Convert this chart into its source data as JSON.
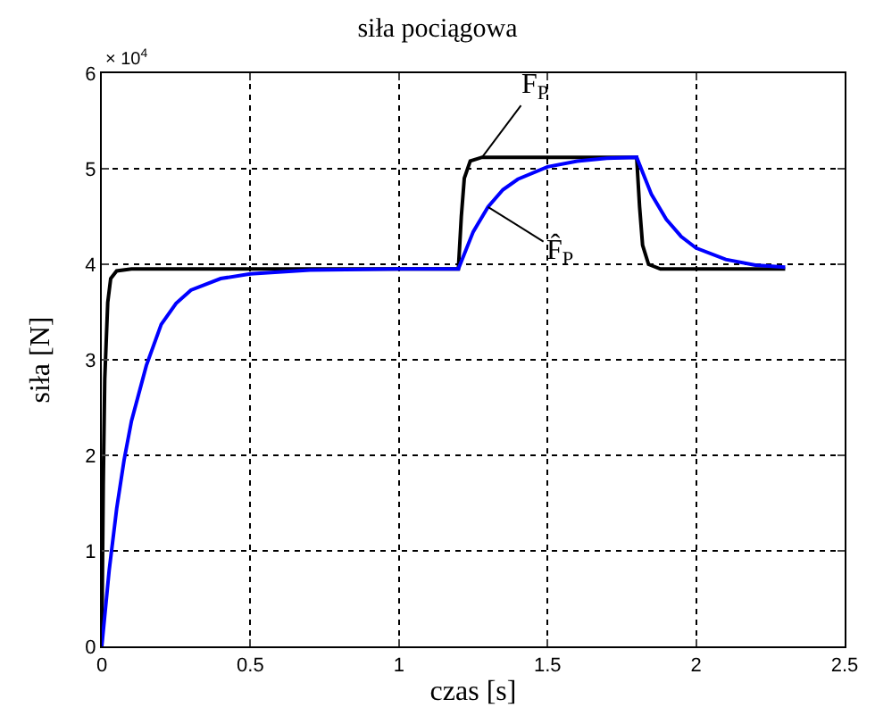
{
  "chart_data": {
    "type": "line",
    "title": "siła pociągowa",
    "xlabel": "czas [s]",
    "ylabel": "siła [N]",
    "annotations": [
      "× 10$^{4}$"
    ],
    "xlim": [
      0,
      2.5
    ],
    "xticks": [
      0,
      0.5,
      1,
      1.5,
      2,
      2.5
    ],
    "ylim": [
      0,
      6
    ],
    "yticks": [
      0,
      1,
      2,
      3,
      4,
      5,
      6
    ],
    "grid": true,
    "legend": false,
    "line_style": "solid",
    "series": [
      {
        "name": "F$_{P}$",
        "color": "#000000",
        "x": [
          0,
          0.005,
          0.01,
          0.02,
          0.03,
          0.05,
          0.1,
          1.2,
          1.21,
          1.22,
          1.24,
          1.28,
          1.8,
          1.81,
          1.82,
          1.84,
          1.88,
          2.3
        ],
        "values": [
          0,
          1.7,
          2.8,
          3.6,
          3.85,
          3.93,
          3.95,
          3.95,
          4.5,
          4.9,
          5.08,
          5.12,
          5.12,
          4.6,
          4.2,
          4.0,
          3.95,
          3.95
        ]
      },
      {
        "name": "F̂$_{P}$",
        "color": "#0000ff",
        "x": [
          0,
          0.025,
          0.05,
          0.075,
          0.1,
          0.15,
          0.2,
          0.25,
          0.3,
          0.4,
          0.5,
          0.7,
          1.0,
          1.2,
          1.25,
          1.3,
          1.35,
          1.4,
          1.5,
          1.6,
          1.7,
          1.8,
          1.85,
          1.9,
          1.95,
          2.0,
          2.1,
          2.2,
          2.3
        ],
        "values": [
          0,
          0.8,
          1.44,
          1.95,
          2.36,
          2.94,
          3.37,
          3.59,
          3.73,
          3.85,
          3.9,
          3.94,
          3.95,
          3.95,
          4.34,
          4.6,
          4.78,
          4.89,
          5.02,
          5.08,
          5.11,
          5.12,
          4.73,
          4.47,
          4.29,
          4.17,
          4.05,
          3.99,
          3.97
        ]
      }
    ]
  }
}
